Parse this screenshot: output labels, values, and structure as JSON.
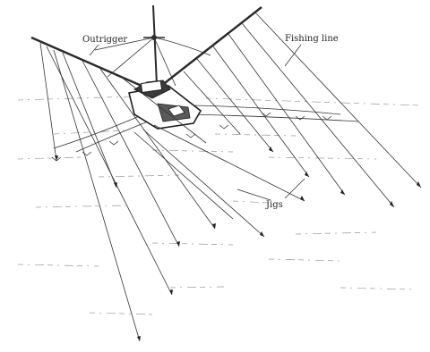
{
  "labels": {
    "outrigger": "Outrigger",
    "fishing_line": "Fishing line",
    "jigs": "Jigs"
  }
}
